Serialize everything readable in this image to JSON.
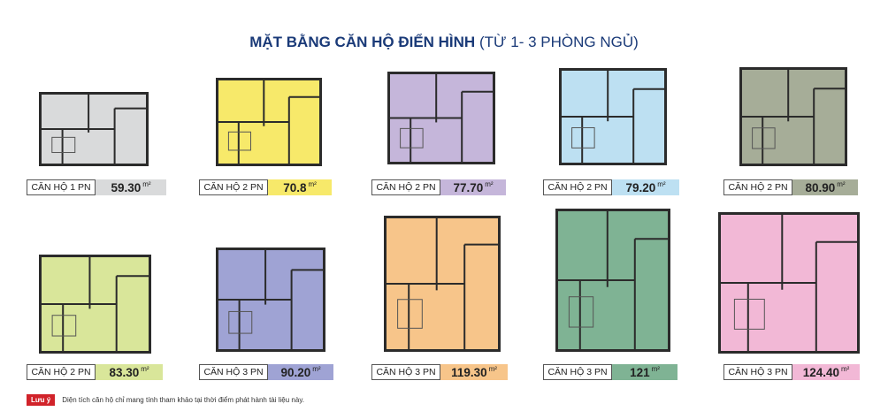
{
  "title": {
    "bold": "MẶT BẰNG CĂN HỘ ĐIỂN HÌNH",
    "normal": "(TỪ 1- 3 PHÒNG NGỦ)"
  },
  "units": [
    {
      "name": "CĂN HỘ 1 PN",
      "area": "59.30",
      "unit": "m²",
      "color": "#d9dadb"
    },
    {
      "name": "CĂN HỘ 2 PN",
      "area": "70.8",
      "unit": "m²",
      "color": "#f7e96a"
    },
    {
      "name": "CĂN HỘ 2 PN",
      "area": "77.70",
      "unit": "m²",
      "color": "#c5b6da"
    },
    {
      "name": "CĂN HỘ 2 PN",
      "area": "79.20",
      "unit": "m²",
      "color": "#bde0f2"
    },
    {
      "name": "CĂN HỘ 2 PN",
      "area": "80.90",
      "unit": "m²",
      "color": "#a6ad98"
    },
    {
      "name": "CĂN HỘ 2 PN",
      "area": "83.30",
      "unit": "m²",
      "color": "#d9e69a"
    },
    {
      "name": "CĂN HỘ 3 PN",
      "area": "90.20",
      "unit": "m²",
      "color": "#9fa3d4"
    },
    {
      "name": "CĂN HỘ 3 PN",
      "area": "119.30",
      "unit": "m²",
      "color": "#f7c58a"
    },
    {
      "name": "CĂN HỘ 3 PN",
      "area": "121",
      "unit": "m²",
      "color": "#7fb394"
    },
    {
      "name": "CĂN HỘ 3 PN",
      "area": "124.40",
      "unit": "m²",
      "color": "#f2b8d6"
    }
  ],
  "note": {
    "tag": "Lưu ý",
    "text": "Diện tích căn hộ chỉ mang tính tham khảo tại thời điểm phát hành tài liệu này."
  }
}
